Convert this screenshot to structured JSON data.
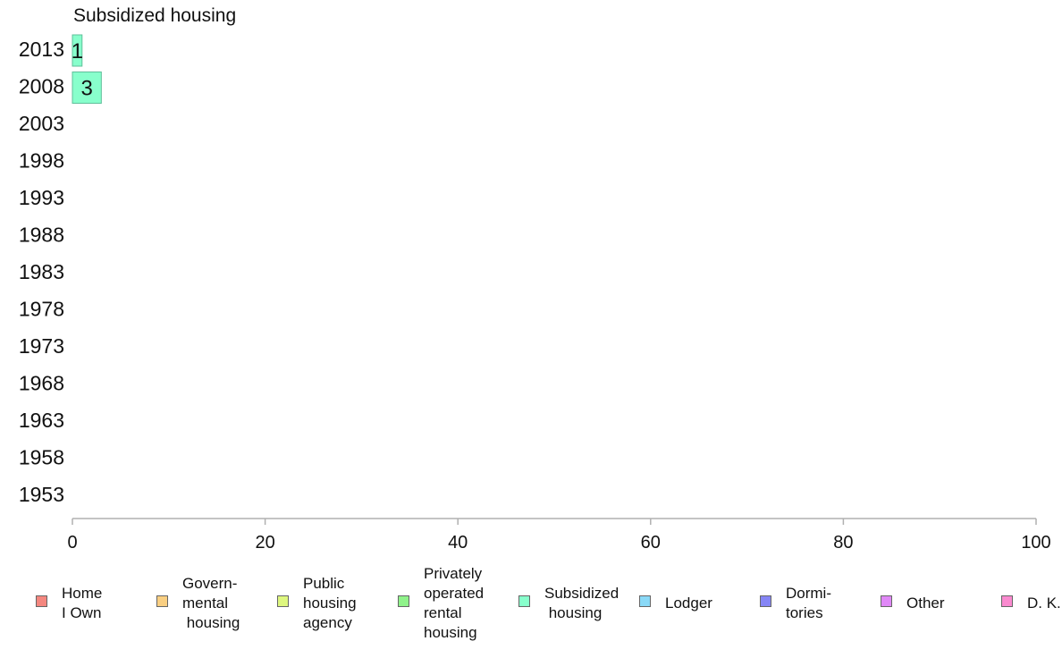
{
  "chart_data": {
    "type": "bar",
    "orientation": "horizontal",
    "title": "Subsidized housing",
    "xlabel": "",
    "ylabel": "",
    "xlim": [
      0,
      100
    ],
    "x_ticks": [
      "0",
      "20",
      "40",
      "60",
      "80",
      "100"
    ],
    "categories": [
      "2013",
      "2008",
      "2003",
      "1998",
      "1993",
      "1988",
      "1983",
      "1978",
      "1973",
      "1968",
      "1963",
      "1958",
      "1953"
    ],
    "series": [
      {
        "name": "Subsidized housing",
        "color": "#88ffcc",
        "values": [
          1,
          3,
          null,
          null,
          null,
          null,
          null,
          null,
          null,
          null,
          null,
          null,
          null
        ],
        "labels": [
          "1",
          "3",
          "",
          "",
          "",
          "",
          "",
          "",
          "",
          "",
          "",
          "",
          ""
        ]
      }
    ],
    "legend": {
      "position": "bottom",
      "items": [
        {
          "label": "Home\nI Own",
          "color": "#f4877f"
        },
        {
          "label": "Govern-\nmental\n housing",
          "color": "#f9cf82"
        },
        {
          "label": "Public\nhousing\nagency",
          "color": "#def77f"
        },
        {
          "label": "Privately\noperated\nrental\nhousing",
          "color": "#8ff28a"
        },
        {
          "label": "Subsidized\n housing",
          "color": "#88ffcc"
        },
        {
          "label": "Lodger",
          "color": "#8ad9f7"
        },
        {
          "label": "Dormi-\ntories",
          "color": "#8585f5"
        },
        {
          "label": "Other",
          "color": "#e088f7"
        },
        {
          "label": "D. K.",
          "color": "#fa8acf"
        }
      ]
    },
    "grid": false
  }
}
